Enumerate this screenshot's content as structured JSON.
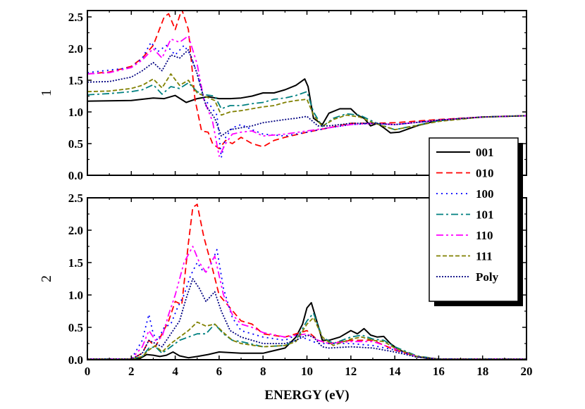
{
  "chart_data": [
    {
      "type": "line",
      "ylabel": "1",
      "xlim": [
        0,
        20
      ],
      "ylim": [
        0,
        2.6
      ],
      "xticks": [
        "0",
        "2",
        "4",
        "6",
        "8",
        "10",
        "12",
        "14",
        "16",
        "18",
        "20"
      ],
      "yticks": [
        "0.0",
        "0.5",
        "1.0",
        "1.5",
        "2.0",
        "2.5"
      ],
      "series": [
        {
          "name": "001",
          "color": "#000000",
          "dash": "solid",
          "x": [
            0,
            2,
            3,
            3.5,
            4,
            4.5,
            5,
            5.5,
            6,
            6.5,
            7,
            7.5,
            8,
            8.5,
            9,
            9.5,
            9.9,
            10.05,
            10.3,
            10.7,
            11,
            11.5,
            12,
            12.3,
            12.6,
            12.9,
            13.2,
            13.5,
            13.8,
            14.2,
            15,
            16,
            18,
            20
          ],
          "y": [
            1.17,
            1.18,
            1.22,
            1.21,
            1.26,
            1.15,
            1.21,
            1.24,
            1.21,
            1.21,
            1.22,
            1.25,
            1.3,
            1.3,
            1.35,
            1.42,
            1.52,
            1.4,
            0.9,
            0.8,
            0.98,
            1.05,
            1.05,
            0.95,
            0.9,
            0.78,
            0.82,
            0.75,
            0.67,
            0.68,
            0.78,
            0.87,
            0.92,
            0.94
          ]
        },
        {
          "name": "010",
          "color": "#ff0000",
          "dash": "9,5",
          "x": [
            0,
            1,
            2,
            2.5,
            3,
            3.5,
            3.7,
            4,
            4.3,
            4.6,
            4.9,
            5.2,
            5.5,
            5.7,
            6,
            6.3,
            6.6,
            7,
            7.5,
            8,
            8.5,
            9,
            10,
            11,
            12,
            13,
            14,
            16,
            18,
            20
          ],
          "y": [
            1.6,
            1.63,
            1.72,
            1.85,
            2.05,
            2.5,
            2.55,
            2.3,
            2.62,
            2.3,
            1.2,
            0.7,
            0.68,
            0.5,
            0.42,
            0.55,
            0.5,
            0.6,
            0.5,
            0.45,
            0.55,
            0.6,
            0.68,
            0.75,
            0.82,
            0.82,
            0.83,
            0.88,
            0.92,
            0.94
          ]
        },
        {
          "name": "100",
          "color": "#0000ff",
          "dash": "2,5",
          "x": [
            0,
            2,
            2.5,
            2.9,
            3.2,
            3.6,
            4,
            4.4,
            4.7,
            5,
            5.3,
            5.6,
            5.9,
            6.1,
            6.3,
            6.6,
            7,
            7.5,
            8,
            9,
            10,
            11,
            12,
            13,
            14,
            16,
            18,
            20
          ],
          "y": [
            1.62,
            1.7,
            1.85,
            2.1,
            1.95,
            2.05,
            1.9,
            2.05,
            1.9,
            1.6,
            1.2,
            1.1,
            0.95,
            0.28,
            0.6,
            0.75,
            0.8,
            0.72,
            0.65,
            0.62,
            0.68,
            0.75,
            0.8,
            0.82,
            0.8,
            0.87,
            0.92,
            0.94
          ]
        },
        {
          "name": "101",
          "color": "#008080",
          "dash": "10,4,3,4",
          "x": [
            0,
            1,
            2,
            2.5,
            3,
            3.4,
            3.8,
            4.2,
            4.6,
            5,
            5.4,
            5.8,
            6.1,
            6.5,
            7,
            7.5,
            8,
            8.5,
            9,
            9.5,
            10,
            10.3,
            10.7,
            11.2,
            11.8,
            12.4,
            13,
            13.5,
            14,
            16,
            18,
            20
          ],
          "y": [
            1.27,
            1.29,
            1.32,
            1.35,
            1.43,
            1.28,
            1.4,
            1.37,
            1.46,
            1.32,
            1.27,
            1.25,
            1.05,
            1.1,
            1.1,
            1.13,
            1.15,
            1.2,
            1.22,
            1.26,
            1.32,
            1.0,
            0.77,
            0.9,
            0.97,
            0.95,
            0.85,
            0.78,
            0.72,
            0.86,
            0.92,
            0.94
          ]
        },
        {
          "name": "110",
          "color": "#ff00ff",
          "dash": "10,4,3,4,3,4",
          "x": [
            0,
            1,
            2,
            2.5,
            3,
            3.4,
            3.8,
            4.2,
            4.6,
            5,
            5.3,
            5.7,
            6,
            6.3,
            6.6,
            7,
            7.5,
            8,
            9,
            10,
            11,
            12,
            13,
            14,
            16,
            18,
            20
          ],
          "y": [
            1.6,
            1.62,
            1.7,
            1.82,
            2.0,
            1.85,
            2.15,
            2.1,
            2.2,
            1.75,
            1.2,
            0.85,
            0.3,
            0.5,
            0.65,
            0.68,
            0.7,
            0.62,
            0.65,
            0.7,
            0.75,
            0.8,
            0.82,
            0.8,
            0.87,
            0.92,
            0.94
          ]
        },
        {
          "name": "111",
          "color": "#808000",
          "dash": "6,3",
          "x": [
            0,
            1,
            2,
            2.5,
            3,
            3.4,
            3.8,
            4.2,
            4.6,
            5,
            5.4,
            5.8,
            6.1,
            6.5,
            7,
            7.5,
            8,
            8.5,
            9,
            9.5,
            10,
            10.3,
            10.7,
            11.2,
            11.8,
            12.4,
            13,
            14,
            16,
            18,
            20
          ],
          "y": [
            1.32,
            1.33,
            1.37,
            1.42,
            1.52,
            1.38,
            1.6,
            1.42,
            1.5,
            1.3,
            1.24,
            1.18,
            0.95,
            1.0,
            1.02,
            1.05,
            1.08,
            1.1,
            1.15,
            1.18,
            1.2,
            0.95,
            0.77,
            0.88,
            0.95,
            0.92,
            0.83,
            0.72,
            0.85,
            0.92,
            0.94
          ]
        },
        {
          "name": "Poly",
          "color": "#000080",
          "dash": "2,2",
          "x": [
            0,
            1,
            2,
            2.5,
            3,
            3.4,
            3.8,
            4.2,
            4.6,
            5,
            5.4,
            5.8,
            6.1,
            6.5,
            7,
            7.5,
            8,
            9,
            9.5,
            10,
            10.5,
            11,
            12,
            13,
            14,
            16,
            18,
            20
          ],
          "y": [
            1.47,
            1.48,
            1.55,
            1.65,
            1.78,
            1.65,
            1.9,
            1.85,
            1.98,
            1.6,
            1.1,
            0.9,
            0.62,
            0.72,
            0.75,
            0.78,
            0.83,
            0.88,
            0.9,
            0.93,
            0.78,
            0.78,
            0.82,
            0.82,
            0.8,
            0.87,
            0.92,
            0.94
          ]
        }
      ]
    },
    {
      "type": "line",
      "xlabel": "ENERGY (eV)",
      "ylabel": "2",
      "xlim": [
        0,
        20
      ],
      "ylim": [
        0,
        2.5
      ],
      "xticks": [
        "0",
        "2",
        "4",
        "6",
        "8",
        "10",
        "12",
        "14",
        "16",
        "18",
        "20"
      ],
      "yticks": [
        "0.0",
        "0.5",
        "1.0",
        "1.5",
        "2.0",
        "2.5"
      ],
      "series": [
        {
          "name": "001",
          "color": "#000000",
          "dash": "solid",
          "x": [
            0,
            2,
            2.4,
            2.7,
            3,
            3.3,
            3.6,
            3.9,
            4.2,
            4.6,
            5,
            5.5,
            6,
            7,
            8,
            9,
            9.5,
            9.8,
            10,
            10.2,
            10.4,
            10.7,
            11,
            11.5,
            12,
            12.3,
            12.6,
            12.9,
            13.2,
            13.5,
            13.8,
            14.2,
            15,
            15.5,
            16,
            20
          ],
          "y": [
            0.01,
            0.01,
            0.02,
            0.08,
            0.07,
            0.05,
            0.07,
            0.12,
            0.06,
            0.03,
            0.05,
            0.08,
            0.12,
            0.1,
            0.1,
            0.18,
            0.35,
            0.55,
            0.8,
            0.88,
            0.65,
            0.3,
            0.3,
            0.35,
            0.45,
            0.4,
            0.48,
            0.38,
            0.35,
            0.36,
            0.25,
            0.15,
            0.05,
            0.02,
            0.01,
            0.01
          ]
        },
        {
          "name": "010",
          "color": "#ff0000",
          "dash": "9,5",
          "x": [
            0,
            2,
            2.5,
            2.8,
            3.1,
            3.4,
            3.7,
            4,
            4.3,
            4.6,
            4.8,
            5,
            5.3,
            5.7,
            6,
            6.5,
            7,
            7.5,
            8,
            9,
            10,
            10.5,
            11,
            12,
            13,
            14,
            15,
            16,
            20
          ],
          "y": [
            0.01,
            0.01,
            0.1,
            0.3,
            0.2,
            0.4,
            0.6,
            0.9,
            0.85,
            1.8,
            2.35,
            2.4,
            1.9,
            1.4,
            1.0,
            0.8,
            0.6,
            0.55,
            0.4,
            0.35,
            0.45,
            0.3,
            0.25,
            0.3,
            0.3,
            0.15,
            0.05,
            0.01,
            0.01
          ]
        },
        {
          "name": "100",
          "color": "#0000ff",
          "dash": "2,5",
          "x": [
            0,
            2,
            2.5,
            2.8,
            3,
            3.2,
            3.5,
            3.8,
            4.1,
            4.4,
            4.7,
            5,
            5.3,
            5.6,
            5.9,
            6.2,
            6.6,
            7,
            7.5,
            8,
            9,
            9.5,
            10,
            10.5,
            11,
            12,
            13,
            14,
            15,
            16,
            20
          ],
          "y": [
            0.01,
            0.01,
            0.3,
            0.7,
            0.4,
            0.3,
            0.5,
            0.55,
            0.8,
            1.0,
            1.3,
            1.5,
            1.35,
            1.45,
            1.7,
            1.1,
            0.65,
            0.45,
            0.4,
            0.35,
            0.3,
            0.38,
            0.32,
            0.25,
            0.25,
            0.25,
            0.22,
            0.15,
            0.05,
            0.01,
            0.01
          ]
        },
        {
          "name": "101",
          "color": "#008080",
          "dash": "10,4,3,4",
          "x": [
            0,
            2,
            2.5,
            2.8,
            3.1,
            3.4,
            3.8,
            4.2,
            4.6,
            5,
            5.4,
            5.8,
            6.2,
            6.6,
            7,
            8,
            9,
            9.5,
            10,
            10.3,
            10.7,
            11.2,
            12,
            12.5,
            13,
            13.5,
            14,
            15,
            16,
            20
          ],
          "y": [
            0.01,
            0.01,
            0.05,
            0.18,
            0.2,
            0.1,
            0.2,
            0.3,
            0.35,
            0.4,
            0.4,
            0.55,
            0.4,
            0.3,
            0.28,
            0.2,
            0.22,
            0.3,
            0.6,
            0.72,
            0.35,
            0.25,
            0.35,
            0.38,
            0.32,
            0.3,
            0.2,
            0.06,
            0.01,
            0.01
          ]
        },
        {
          "name": "110",
          "color": "#ff00ff",
          "dash": "10,4,3,4,3,4",
          "x": [
            0,
            2,
            2.5,
            2.8,
            3.1,
            3.4,
            3.7,
            4,
            4.4,
            4.8,
            5.1,
            5.4,
            5.8,
            6.2,
            6.6,
            7,
            7.5,
            8,
            9,
            10,
            10.5,
            11,
            12,
            13,
            14,
            15,
            16,
            20
          ],
          "y": [
            0.01,
            0.01,
            0.2,
            0.45,
            0.3,
            0.35,
            0.7,
            1.0,
            1.5,
            1.75,
            1.5,
            1.35,
            1.6,
            1.0,
            0.7,
            0.55,
            0.5,
            0.42,
            0.35,
            0.4,
            0.3,
            0.25,
            0.28,
            0.28,
            0.17,
            0.05,
            0.01,
            0.01
          ]
        },
        {
          "name": "111",
          "color": "#808000",
          "dash": "6,3",
          "x": [
            0,
            2,
            2.5,
            2.8,
            3.1,
            3.4,
            3.8,
            4.2,
            4.6,
            5,
            5.4,
            5.8,
            6.2,
            6.6,
            7,
            8,
            9,
            9.5,
            10,
            10.3,
            10.7,
            11.2,
            12,
            12.5,
            13,
            13.5,
            14,
            15,
            16,
            20
          ],
          "y": [
            0.01,
            0.01,
            0.05,
            0.15,
            0.22,
            0.12,
            0.25,
            0.35,
            0.45,
            0.58,
            0.52,
            0.55,
            0.42,
            0.3,
            0.25,
            0.2,
            0.22,
            0.28,
            0.55,
            0.65,
            0.35,
            0.22,
            0.32,
            0.35,
            0.3,
            0.28,
            0.18,
            0.05,
            0.01,
            0.01
          ]
        },
        {
          "name": "Poly",
          "color": "#000080",
          "dash": "2,2",
          "x": [
            0,
            2,
            2.5,
            2.8,
            3.1,
            3.4,
            3.8,
            4.2,
            4.5,
            4.8,
            5.1,
            5.4,
            5.8,
            6.1,
            6.5,
            7,
            8,
            9,
            9.5,
            10,
            10.3,
            10.7,
            11,
            12,
            13,
            14,
            15,
            16,
            20
          ],
          "y": [
            0.01,
            0.01,
            0.1,
            0.3,
            0.25,
            0.2,
            0.4,
            0.6,
            0.95,
            1.25,
            1.1,
            0.9,
            1.05,
            0.75,
            0.45,
            0.35,
            0.25,
            0.25,
            0.3,
            0.38,
            0.35,
            0.2,
            0.18,
            0.2,
            0.18,
            0.12,
            0.04,
            0.01,
            0.01
          ]
        }
      ]
    }
  ],
  "legend": {
    "placement": "right, overlapping both panels",
    "entries": [
      "001",
      "010",
      "100",
      "101",
      "110",
      "111",
      "Poly"
    ]
  }
}
